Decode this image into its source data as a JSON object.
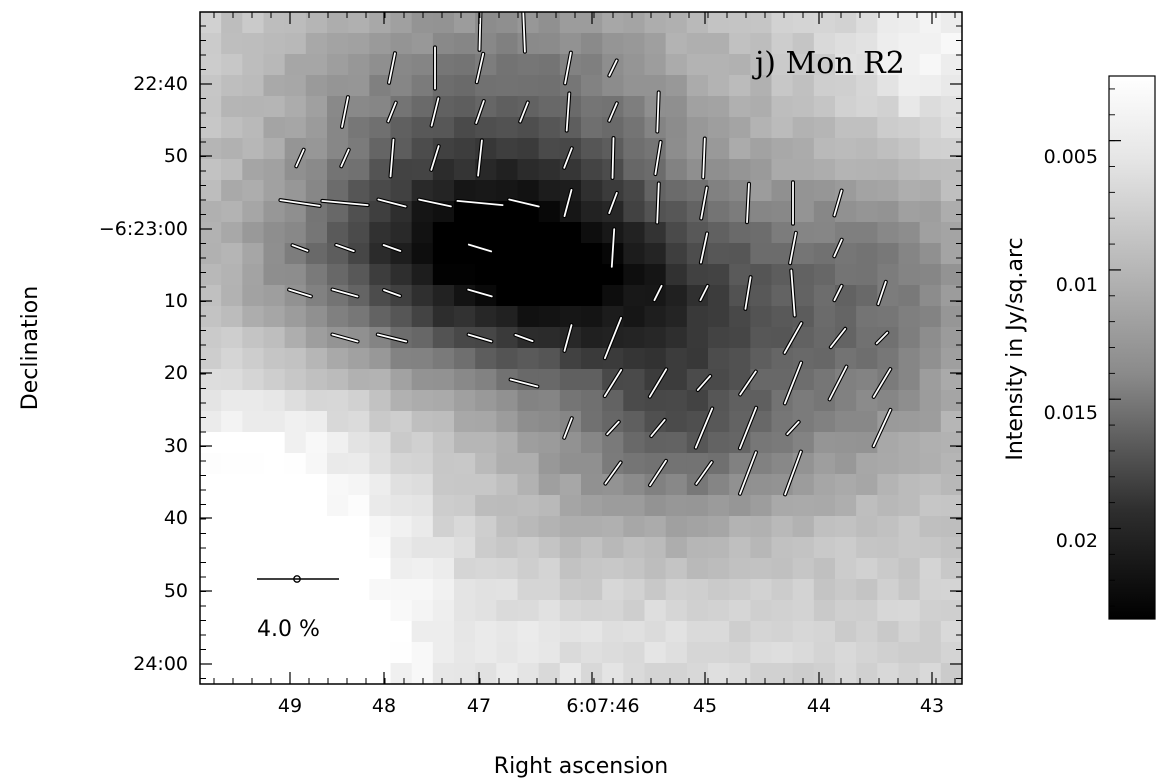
{
  "chart_data": {
    "type": "heatmap",
    "title": "j) Mon R2",
    "xlabel": "Right ascension",
    "ylabel": "Declination",
    "colorbar_label": "Intensity in Jy/sq.arc",
    "x_tick_labels": [
      "49",
      "48",
      "47",
      "6:07:46",
      "45",
      "44",
      "43"
    ],
    "y_tick_labels": [
      "22:40",
      "50",
      "−6:23:00",
      "10",
      "20",
      "30",
      "40",
      "50",
      "24:00"
    ],
    "colorbar_tick_labels": [
      "0.005",
      "0.01",
      "0.015",
      "0.02"
    ],
    "colorbar_range": [
      0.0025,
      0.0235
    ],
    "colorbar_ticks": [
      0.005,
      0.01,
      0.015,
      0.02
    ],
    "colormap": "inverted grayscale (white = low intensity, black = high intensity)",
    "scale_bar": {
      "label": "4.0 %",
      "percent": 4.0
    },
    "vectors": {
      "description": "polarization vectors overlaid on the intensity map",
      "color": "#ffffff",
      "count": 99
    }
  }
}
